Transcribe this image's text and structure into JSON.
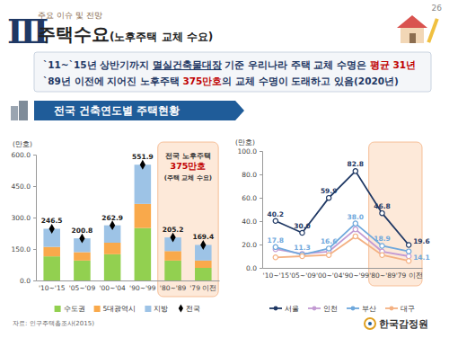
{
  "header": {
    "page": "26",
    "section": "Ⅲ",
    "kicker": "주요 이슈 및 전망",
    "title": "주택수요",
    "title_sub": "(노후주택 교체 수요)"
  },
  "summary": [
    [
      {
        "text": "`11~`15년 상반기까지 "
      },
      {
        "text": "멸실건축물대장",
        "underline": true
      },
      {
        "text": " 기준 우리나라 주택 교체 수명은 "
      },
      {
        "text": "평균 31년",
        "emphasis": true
      }
    ],
    [
      {
        "text": "`89년 이전에 지어진 노후주택 "
      },
      {
        "text": "375만호",
        "emphasis": true
      },
      {
        "text": "의 교체 수명이 도래하고 있음(2020년)"
      }
    ]
  ],
  "banner": "전국 건축연도별 주택현황",
  "logo": "한국감정원",
  "chart_data": [
    {
      "type": "bar",
      "stacked": true,
      "ylabel": "(만호)",
      "categories": [
        "'10~'15",
        "'05~'09",
        "'00~'04",
        "'90~'99",
        "'80~'89",
        "'79 이전"
      ],
      "series": [
        {
          "name": "수도권",
          "color": "#92d050",
          "values": [
            115,
            95,
            125,
            250,
            95,
            60
          ]
        },
        {
          "name": "5대광역시",
          "color": "#f9a94b",
          "values": [
            45,
            40,
            55,
            115,
            45,
            35
          ]
        },
        {
          "name": "지방",
          "color": "#9dc3e6",
          "values": [
            86.5,
            65.8,
            82.9,
            186.9,
            65.2,
            74.4
          ]
        },
        {
          "name": "전국",
          "type": "scatter",
          "marker": "diamond",
          "color": "#000000",
          "data_labels": true,
          "values": [
            246.5,
            200.8,
            262.9,
            551.9,
            205.2,
            169.4
          ]
        }
      ],
      "ylim": [
        0,
        600
      ],
      "yticks": [
        {
          "value": 0,
          "label": "0.0"
        },
        {
          "value": 150,
          "label": "150.0"
        },
        {
          "value": 300,
          "label": "300.0"
        },
        {
          "value": 450,
          "label": "450.0"
        },
        {
          "value": 600,
          "label": "600.0"
        }
      ],
      "grid": false,
      "legend": "bottom",
      "annotations": [
        "전국 노후주택",
        "375만호",
        "(주택 교체 수요)"
      ],
      "source": "자료: 인구주택총조사(2015)"
    },
    {
      "type": "line",
      "ylabel": "(만호)",
      "marker": "circle",
      "categories": [
        "'10~'15",
        "'05~'09",
        "'00~'04",
        "'90~'99",
        "'80~'89",
        "'79 이전"
      ],
      "series": [
        {
          "name": "서울",
          "color": "#1f3864",
          "data_labels": true,
          "values": [
            40.2,
            30.0,
            59.9,
            82.8,
            46.8,
            19.6
          ],
          "value_labels": [
            "40.2",
            "30.0",
            "59.9",
            "82.8",
            "46.8",
            "19.6"
          ]
        },
        {
          "name": "인천",
          "color": "#c39bd3",
          "values": [
            16,
            12,
            14,
            33,
            14,
            10
          ]
        },
        {
          "name": "부산",
          "color": "#6fa8dc",
          "data_labels": true,
          "values": [
            17.8,
            11.3,
            16.6,
            38.0,
            18.9,
            14.1
          ],
          "value_labels": [
            "17.8",
            "11.3",
            "16.6",
            "38.0",
            "18.9",
            "14.1"
          ]
        },
        {
          "name": "대구",
          "color": "#f4b183",
          "values": [
            9,
            10,
            11,
            27,
            11,
            6
          ]
        }
      ],
      "ylim": [
        0,
        100
      ],
      "yticks": [
        {
          "value": 0,
          "label": "0.0"
        },
        {
          "value": 20,
          "label": "20.0"
        },
        {
          "value": 40,
          "label": "40.0"
        },
        {
          "value": 60,
          "label": "60.0"
        },
        {
          "value": 80,
          "label": "80.0"
        },
        {
          "value": 100,
          "label": "100.0"
        }
      ],
      "grid": false,
      "legend": "bottom"
    }
  ]
}
